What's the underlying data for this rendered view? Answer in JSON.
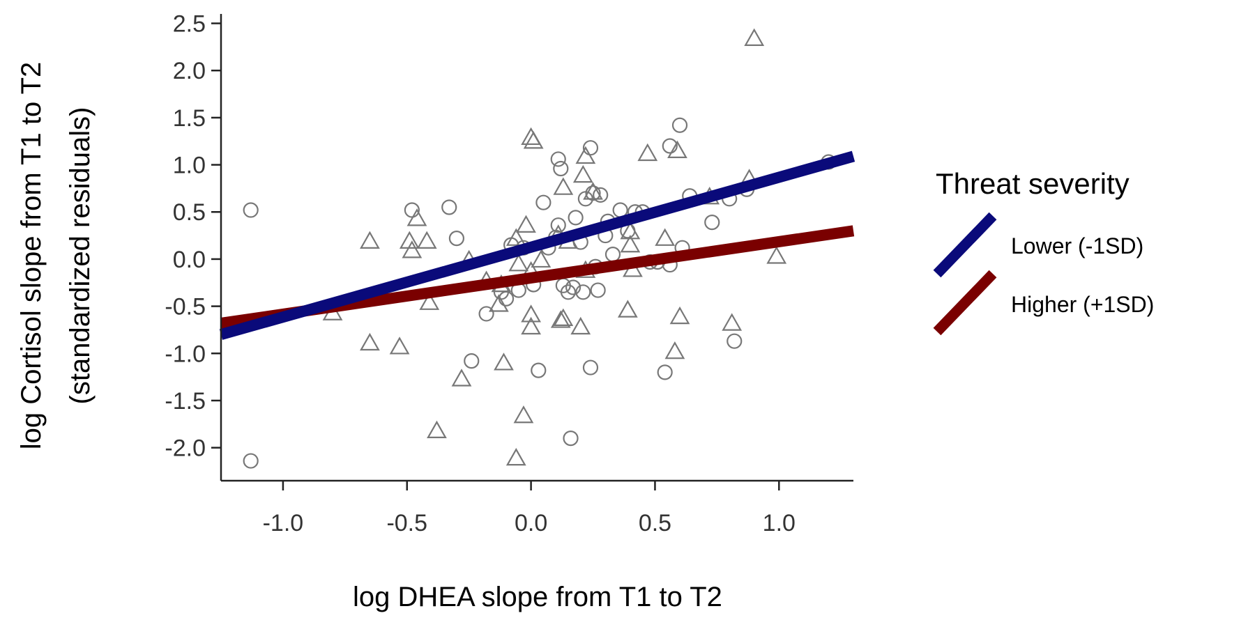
{
  "chart_data": {
    "type": "scatter",
    "xlabel": "log DHEA slope from T1 to T2",
    "ylabel_lines": [
      "log Cortisol slope from T1 to T2",
      "(standardized residuals)"
    ],
    "xlim": [
      -1.25,
      1.3
    ],
    "ylim": [
      -2.35,
      2.6
    ],
    "x_ticks": [
      -1.0,
      -0.5,
      0.0,
      0.5,
      1.0
    ],
    "x_tick_labels": [
      "-1.0",
      "-0.5",
      "0.0",
      "0.5",
      "1.0"
    ],
    "y_ticks": [
      2.5,
      2.0,
      1.5,
      1.0,
      0.5,
      0.0,
      -0.5,
      -1.0,
      -1.5,
      -2.0
    ],
    "y_tick_labels": [
      "2.5",
      "2.0",
      "1.5",
      "1.0",
      "0.5",
      "0.0",
      "-0.5",
      "-1.0",
      "-1.5",
      "-2.0"
    ],
    "legend": {
      "title": "Threat severity",
      "placement": "right",
      "entries": [
        {
          "label": "Lower (-1SD)",
          "color": "#0a0a7a"
        },
        {
          "label": "Higher (+1SD)",
          "color": "#7a0000"
        }
      ]
    },
    "lines": [
      {
        "color": "#0a0a7a",
        "x": [
          -1.25,
          1.3
        ],
        "y": [
          -0.8,
          1.09
        ]
      },
      {
        "color": "#7a0000",
        "x": [
          -1.25,
          1.3
        ],
        "y": [
          -0.68,
          0.3
        ]
      }
    ],
    "series": [
      {
        "marker": "circle",
        "color": "#777777",
        "points": [
          [
            -1.13,
            0.52
          ],
          [
            -1.13,
            -2.14
          ],
          [
            -0.48,
            0.52
          ],
          [
            -0.33,
            0.55
          ],
          [
            -0.3,
            0.22
          ],
          [
            -0.24,
            -1.08
          ],
          [
            -0.18,
            -0.58
          ],
          [
            -0.12,
            -0.35
          ],
          [
            -0.1,
            -0.42
          ],
          [
            -0.08,
            0.15
          ],
          [
            -0.05,
            -0.33
          ],
          [
            -0.03,
            0.12
          ],
          [
            0.01,
            -0.27
          ],
          [
            0.03,
            -1.18
          ],
          [
            0.05,
            0.6
          ],
          [
            0.1,
            0.23
          ],
          [
            0.11,
            1.06
          ],
          [
            0.12,
            0.96
          ],
          [
            0.11,
            0.36
          ],
          [
            0.13,
            -0.28
          ],
          [
            0.15,
            -0.35
          ],
          [
            0.17,
            -0.3
          ],
          [
            0.18,
            0.44
          ],
          [
            0.2,
            0.18
          ],
          [
            0.21,
            -0.35
          ],
          [
            0.22,
            0.64
          ],
          [
            0.24,
            1.18
          ],
          [
            0.24,
            -1.15
          ],
          [
            0.25,
            0.7
          ],
          [
            0.26,
            -0.08
          ],
          [
            0.27,
            -0.33
          ],
          [
            0.28,
            0.68
          ],
          [
            0.3,
            0.25
          ],
          [
            0.31,
            0.4
          ],
          [
            0.33,
            0.05
          ],
          [
            0.36,
            0.52
          ],
          [
            0.39,
            0.3
          ],
          [
            0.42,
            0.5
          ],
          [
            0.45,
            0.5
          ],
          [
            0.48,
            -0.03
          ],
          [
            0.51,
            -0.03
          ],
          [
            0.54,
            -1.2
          ],
          [
            0.56,
            -0.06
          ],
          [
            0.56,
            1.2
          ],
          [
            0.6,
            1.42
          ],
          [
            0.61,
            0.12
          ],
          [
            0.64,
            0.67
          ],
          [
            0.73,
            0.39
          ],
          [
            0.8,
            0.64
          ],
          [
            0.82,
            -0.87
          ],
          [
            0.87,
            0.74
          ],
          [
            1.2,
            1.03
          ],
          [
            0.16,
            -1.9
          ],
          [
            0.07,
            0.12
          ]
        ]
      },
      {
        "marker": "triangle",
        "color": "#777777",
        "points": [
          [
            0.9,
            2.35
          ],
          [
            0.0,
            1.3
          ],
          [
            0.01,
            1.26
          ],
          [
            0.22,
            1.1
          ],
          [
            0.47,
            1.13
          ],
          [
            0.59,
            1.16
          ],
          [
            0.13,
            0.77
          ],
          [
            0.21,
            0.9
          ],
          [
            0.25,
            0.72
          ],
          [
            0.72,
            0.67
          ],
          [
            0.88,
            0.86
          ],
          [
            -0.46,
            0.44
          ],
          [
            -0.49,
            0.2
          ],
          [
            -0.42,
            0.2
          ],
          [
            -0.65,
            0.2
          ],
          [
            -0.48,
            0.1
          ],
          [
            -0.25,
            0.0
          ],
          [
            -0.02,
            0.37
          ],
          [
            0.04,
            0.0
          ],
          [
            0.15,
            0.2
          ],
          [
            0.11,
            0.27
          ],
          [
            -0.06,
            0.23
          ],
          [
            0.4,
            0.16
          ],
          [
            0.4,
            0.3
          ],
          [
            0.54,
            0.23
          ],
          [
            0.99,
            0.04
          ],
          [
            0.0,
            -0.12
          ],
          [
            -0.05,
            -0.04
          ],
          [
            -0.12,
            -0.26
          ],
          [
            -0.18,
            -0.22
          ],
          [
            -0.13,
            -0.47
          ],
          [
            0.22,
            -0.11
          ],
          [
            0.41,
            -0.1
          ],
          [
            -0.41,
            -0.45
          ],
          [
            -0.8,
            -0.56
          ],
          [
            0.0,
            -0.58
          ],
          [
            0.13,
            -0.62
          ],
          [
            0.12,
            -0.64
          ],
          [
            0.39,
            -0.53
          ],
          [
            0.6,
            -0.6
          ],
          [
            0.81,
            -0.67
          ],
          [
            0.0,
            -0.71
          ],
          [
            0.2,
            -0.71
          ],
          [
            -0.65,
            -0.88
          ],
          [
            -0.53,
            -0.92
          ],
          [
            0.58,
            -0.97
          ],
          [
            -0.11,
            -1.09
          ],
          [
            -0.28,
            -1.26
          ],
          [
            -0.03,
            -1.65
          ],
          [
            -0.38,
            -1.81
          ],
          [
            -0.06,
            -2.1
          ]
        ]
      }
    ]
  }
}
